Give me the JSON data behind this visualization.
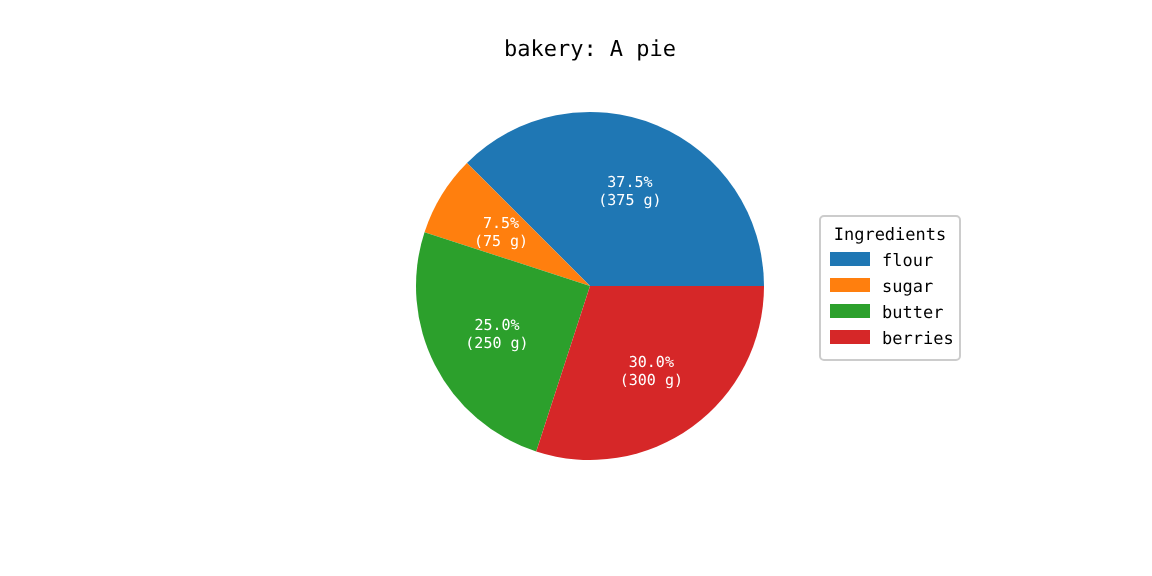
{
  "chart_data": {
    "type": "pie",
    "title": "bakery: A pie",
    "categories": [
      "flour",
      "sugar",
      "butter",
      "berries"
    ],
    "values": [
      375,
      75,
      250,
      300
    ],
    "colors": [
      "#1f77b4",
      "#ff7f0e",
      "#2ca02c",
      "#d62728"
    ],
    "value_labels": [
      "37.5%\n(375 g)",
      "7.5%\n(75 g)",
      "25.0%\n(250 g)",
      "30.0%\n(300 g)"
    ],
    "legend_title": "Ingredients",
    "legend": "right"
  }
}
